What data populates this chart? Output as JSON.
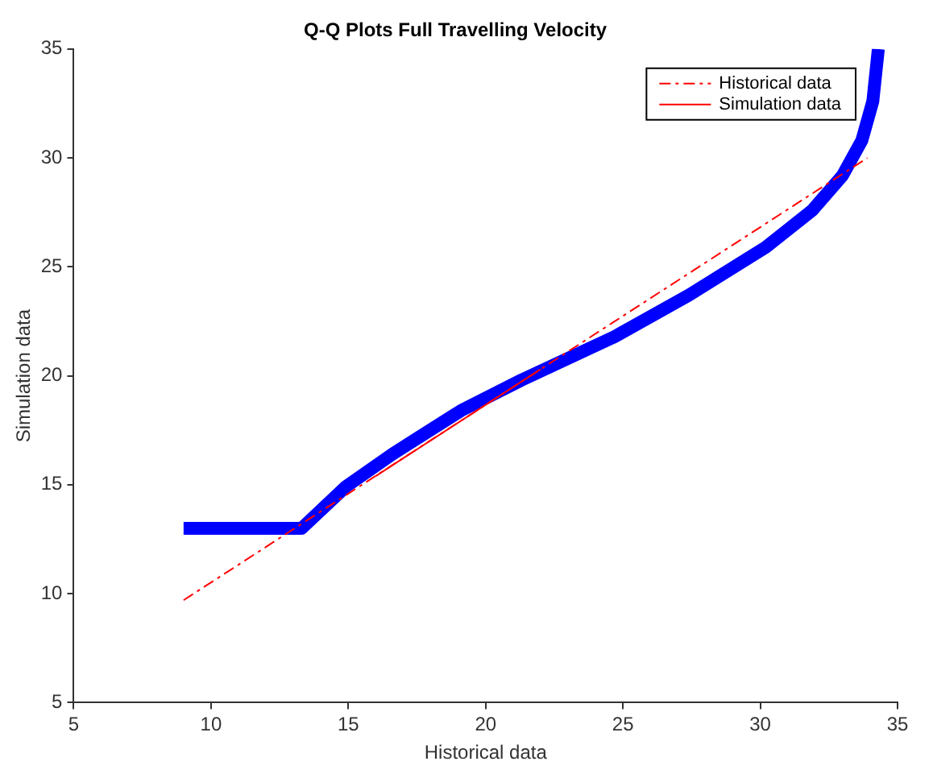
{
  "chart_data": {
    "type": "line",
    "title": "Q-Q Plots Full Travelling Velocity",
    "xlabel": "Historical data",
    "ylabel": "Simulation data",
    "xlim": [
      5,
      35
    ],
    "xticks": [
      5,
      10,
      15,
      20,
      25,
      30,
      35
    ],
    "ylim": [
      5,
      35
    ],
    "yticks": [
      5,
      10,
      15,
      20,
      25,
      30,
      35
    ],
    "grid": false,
    "legend": "top right",
    "marker": "none",
    "series": [
      {
        "color": "#0000ff",
        "x": [
          9,
          13.3,
          14.9,
          16.6,
          19.1,
          21.3,
          24.7,
          27.4,
          30.2,
          31.9,
          33,
          33.7,
          34.1,
          34.3
        ],
        "values": [
          13,
          13,
          14.9,
          16.4,
          18.4,
          19.8,
          21.8,
          23.7,
          25.9,
          27.6,
          29.2,
          30.8,
          32.6,
          35
        ]
      },
      {
        "name": "Historical data",
        "color": "#ff0000",
        "line_style": "dashed",
        "x": [
          9,
          33.9
        ],
        "values": [
          9.7,
          30
        ]
      },
      {
        "name": "Simulation data",
        "color": "#ff0000",
        "line_style": "solid",
        "x": [
          16,
          22
        ],
        "values": [
          15.4,
          20.3
        ]
      }
    ]
  }
}
